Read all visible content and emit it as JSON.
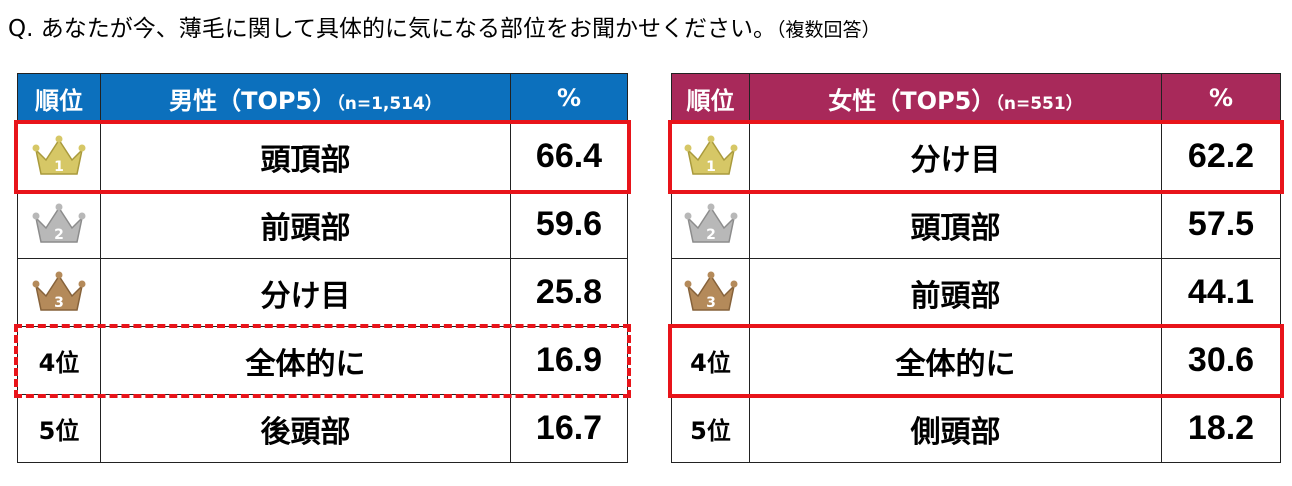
{
  "question": "Q. あなたが今、薄毛に関して具体的に気になる部位をお聞かせください。",
  "question_note": "（複数回答）",
  "colors": {
    "male_header": "#0c70bd",
    "female_header": "#a8295a",
    "highlight": "#e8141a",
    "gold": "#d6c766",
    "silver": "#b8b8b8",
    "bronze": "#b48a5a"
  },
  "chart_data": [
    {
      "type": "table",
      "columns": [
        "順位",
        "男性（TOP5）",
        "%"
      ],
      "group": "男性（TOP5）",
      "n_label": "（n=1,514）",
      "rows": [
        {
          "rank": 1,
          "rank_label": "1",
          "item": "頭頂部",
          "value": 66.4,
          "value_text": "66.4",
          "icon": "gold-crown-icon",
          "highlight": "solid"
        },
        {
          "rank": 2,
          "rank_label": "2",
          "item": "前頭部",
          "value": 59.6,
          "value_text": "59.6",
          "icon": "silver-crown-icon",
          "highlight": "none"
        },
        {
          "rank": 3,
          "rank_label": "3",
          "item": "分け目",
          "value": 25.8,
          "value_text": "25.8",
          "icon": "bronze-crown-icon",
          "highlight": "none"
        },
        {
          "rank": 4,
          "rank_label": "4位",
          "item": "全体的に",
          "value": 16.9,
          "value_text": "16.9",
          "icon": "",
          "highlight": "dashed"
        },
        {
          "rank": 5,
          "rank_label": "5位",
          "item": "後頭部",
          "value": 16.7,
          "value_text": "16.7",
          "icon": "",
          "highlight": "none"
        }
      ]
    },
    {
      "type": "table",
      "columns": [
        "順位",
        "女性（TOP5）",
        "%"
      ],
      "group": "女性（TOP5）",
      "n_label": "（n=551）",
      "rows": [
        {
          "rank": 1,
          "rank_label": "1",
          "item": "分け目",
          "value": 62.2,
          "value_text": "62.2",
          "icon": "gold-crown-icon",
          "highlight": "solid"
        },
        {
          "rank": 2,
          "rank_label": "2",
          "item": "頭頂部",
          "value": 57.5,
          "value_text": "57.5",
          "icon": "silver-crown-icon",
          "highlight": "none"
        },
        {
          "rank": 3,
          "rank_label": "3",
          "item": "前頭部",
          "value": 44.1,
          "value_text": "44.1",
          "icon": "bronze-crown-icon",
          "highlight": "none"
        },
        {
          "rank": 4,
          "rank_label": "4位",
          "item": "全体的に",
          "value": 30.6,
          "value_text": "30.6",
          "icon": "",
          "highlight": "solid"
        },
        {
          "rank": 5,
          "rank_label": "5位",
          "item": "側頭部",
          "value": 18.2,
          "value_text": "18.2",
          "icon": "",
          "highlight": "none"
        }
      ]
    }
  ]
}
